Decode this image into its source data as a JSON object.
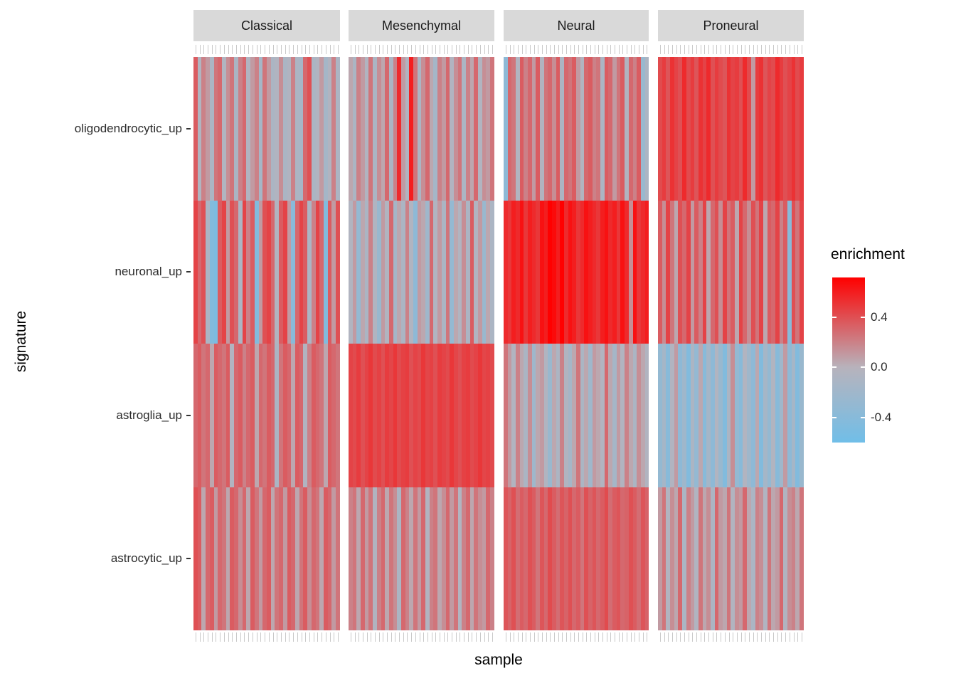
{
  "axes": {
    "x_label": "sample",
    "y_label": "signature"
  },
  "legend": {
    "title": "enrichment",
    "tick_labels": [
      "0.4",
      "0.0",
      "-0.4"
    ],
    "tick_values": [
      0.4,
      0.0,
      -0.4
    ]
  },
  "colors": {
    "strip_background": "#d9d9d9",
    "panel_background": "#ebebeb",
    "axis_text": "#2b2b2b",
    "sample_tick": "#c9c9c9"
  },
  "chart_data": {
    "type": "heatmap",
    "title": "",
    "xlabel": "sample",
    "ylabel": "signature",
    "facet_labels": [
      "Classical",
      "Mesenchymal",
      "Neural",
      "Proneural"
    ],
    "y_categories": [
      "oligodendrocytic_up",
      "neuronal_up",
      "astroglia_up",
      "astrocytic_up"
    ],
    "legend_title": "enrichment",
    "color_scale": {
      "low_color": "#70bee8",
      "mid_color": "#b7b3bc",
      "high_color": "#ff0000",
      "midpoint": 0,
      "domain": [
        -0.6,
        0.72
      ],
      "legend_ticks": [
        0.4,
        0.0,
        -0.4
      ]
    },
    "facet_values": [
      {
        "facet": "Classical",
        "values": [
          [
            0.35,
            -0.05,
            0.2,
            0.1,
            -0.1,
            0.25,
            0.3,
            -0.05,
            0.15,
            0.25,
            -0.1,
            0.2,
            0.3,
            -0.05,
            0.1,
            0.2,
            -0.15,
            0.25,
            0.1,
            -0.1,
            -0.05,
            0.15,
            -0.1,
            -0.05,
            0.2,
            -0.1,
            -0.15,
            0.3,
            0.4,
            -0.1,
            -0.05,
            0.1,
            -0.15,
            -0.05,
            0.2,
            -0.1
          ],
          [
            0.45,
            0.3,
            0.4,
            -0.1,
            -0.45,
            -0.5,
            0.35,
            0.45,
            0.1,
            0.4,
            0.3,
            -0.1,
            0.45,
            0.2,
            0.35,
            -0.45,
            0.1,
            0.4,
            0.45,
            0.3,
            -0.05,
            0.35,
            0.45,
            0.1,
            -0.4,
            0.3,
            0.45,
            0.35,
            -0.1,
            0.2,
            0.45,
            0.3,
            -0.45,
            0.35,
            0.1,
            0.4
          ],
          [
            0.3,
            0.35,
            0.25,
            0.3,
            0.05,
            0.35,
            0.3,
            0.25,
            0.35,
            -0.05,
            0.3,
            0.35,
            0.2,
            0.3,
            0.35,
            0.05,
            0.3,
            0.25,
            0.35,
            0.3,
            -0.1,
            0.25,
            0.35,
            0.3,
            0.05,
            0.35,
            0.3,
            -0.05,
            0.2,
            0.35,
            0.3,
            0.25,
            0.05,
            0.35,
            0.3,
            0.25
          ],
          [
            0.4,
            0.35,
            0.05,
            0.3,
            0.35,
            0.1,
            0.3,
            0.25,
            0.05,
            0.35,
            0.3,
            0.15,
            0.3,
            0.05,
            0.35,
            0.25,
            0.1,
            0.3,
            0.35,
            0.05,
            0.25,
            0.3,
            0.1,
            0.35,
            0.3,
            0.05,
            0.25,
            0.35,
            0.15,
            0.3,
            0.25,
            0.05,
            0.35,
            0.3,
            0.1,
            0.25
          ]
        ]
      },
      {
        "facet": "Mesenchymal",
        "values": [
          [
            0.05,
            -0.1,
            0.2,
            0.1,
            -0.05,
            0.25,
            -0.1,
            0.15,
            0.05,
            0.3,
            -0.1,
            0.2,
            0.55,
            0.1,
            -0.05,
            0.6,
            0.25,
            -0.1,
            0.15,
            0.3,
            0.05,
            -0.15,
            0.2,
            0.1,
            0.3,
            -0.05,
            0.15,
            0.25,
            -0.1,
            0.2,
            0.05,
            0.3,
            -0.05,
            0.15,
            0.1,
            0.25
          ],
          [
            -0.05,
            0.1,
            -0.3,
            0.05,
            -0.1,
            0.2,
            -0.05,
            -0.25,
            0.1,
            -0.05,
            0.3,
            -0.15,
            0.05,
            -0.1,
            0.2,
            -0.05,
            -0.35,
            0.1,
            0.05,
            -0.2,
            0.3,
            -0.05,
            0.1,
            -0.1,
            0.25,
            -0.3,
            0.05,
            -0.05,
            0.15,
            -0.1,
            0.35,
            -0.05,
            0.1,
            -0.25,
            0.05,
            -0.1
          ],
          [
            0.45,
            0.42,
            0.48,
            0.4,
            0.45,
            0.5,
            0.42,
            0.46,
            0.4,
            0.48,
            0.44,
            0.5,
            0.42,
            0.46,
            0.48,
            0.4,
            0.45,
            0.42,
            0.5,
            0.44,
            0.46,
            0.4,
            0.48,
            0.45,
            0.42,
            0.5,
            0.44,
            0.4,
            0.46,
            0.48,
            0.42,
            0.45,
            0.5,
            0.44,
            0.46,
            0.42
          ],
          [
            0.2,
            0.25,
            0.05,
            0.3,
            0.1,
            0.25,
            -0.05,
            0.2,
            0.3,
            0.05,
            0.25,
            0.15,
            -0.1,
            0.3,
            0.2,
            0.05,
            0.25,
            0.1,
            0.3,
            -0.05,
            0.2,
            0.25,
            0.05,
            0.15,
            0.3,
            0.1,
            0.25,
            -0.05,
            0.2,
            0.3,
            0.05,
            0.25,
            0.15,
            0.1,
            0.3,
            0.2
          ]
        ]
      },
      {
        "facet": "Neural",
        "values": [
          [
            -0.35,
            0.3,
            0.25,
            -0.05,
            0.35,
            0.2,
            0.3,
            0.1,
            0.35,
            -0.05,
            0.25,
            0.3,
            0.15,
            0.35,
            -0.1,
            0.3,
            0.25,
            0.35,
            0.1,
            -0.05,
            0.3,
            0.35,
            0.2,
            0.25,
            -0.1,
            0.35,
            0.3,
            0.1,
            0.25,
            0.35,
            -0.05,
            0.3,
            0.2,
            0.35,
            -0.25,
            -0.1
          ],
          [
            0.55,
            0.5,
            0.6,
            0.55,
            0.65,
            0.5,
            0.6,
            0.55,
            0.5,
            0.65,
            0.6,
            0.72,
            0.68,
            0.6,
            0.72,
            0.55,
            0.65,
            0.6,
            0.5,
            0.55,
            0.65,
            0.6,
            0.55,
            0.5,
            0.6,
            0.65,
            0.55,
            0.6,
            0.5,
            0.65,
            0.55,
            0.15,
            0.65,
            0.5,
            0.55,
            0.6
          ],
          [
            0.25,
            0.1,
            -0.05,
            0.2,
            0.05,
            -0.1,
            0.15,
            -0.2,
            0.05,
            0.1,
            -0.05,
            -0.25,
            0.05,
            -0.1,
            0.2,
            -0.05,
            -0.15,
            0.05,
            0.25,
            -0.1,
            0.05,
            -0.2,
            0.1,
            0.05,
            -0.05,
            0.3,
            0.05,
            -0.15,
            0.1,
            -0.05,
            0.2,
            0.05,
            -0.1,
            0.15,
            0.05,
            -0.05
          ],
          [
            0.38,
            0.32,
            0.4,
            0.28,
            0.35,
            0.3,
            0.4,
            0.35,
            0.25,
            0.38,
            0.3,
            0.42,
            0.35,
            0.28,
            0.38,
            0.32,
            0.4,
            0.3,
            0.35,
            0.25,
            0.4,
            0.32,
            0.38,
            0.3,
            0.35,
            0.42,
            0.28,
            0.35,
            0.38,
            0.3,
            0.32,
            0.4,
            0.35,
            0.28,
            0.38,
            0.32
          ]
        ]
      },
      {
        "facet": "Proneural",
        "values": [
          [
            0.42,
            0.48,
            0.38,
            0.52,
            0.45,
            0.4,
            0.55,
            0.42,
            0.48,
            0.38,
            0.52,
            0.45,
            0.55,
            0.4,
            0.48,
            0.42,
            0.38,
            0.52,
            0.45,
            0.48,
            0.4,
            0.55,
            0.42,
            0.1,
            0.48,
            0.52,
            0.38,
            0.45,
            0.42,
            0.55,
            0.48,
            0.4,
            0.45,
            0.52,
            0.42,
            0.48
          ],
          [
            0.35,
            0.15,
            0.45,
            0.25,
            0.05,
            0.4,
            0.3,
            0.45,
            0.1,
            0.35,
            0.2,
            0.45,
            0.05,
            0.3,
            0.4,
            0.15,
            0.45,
            0.25,
            0.35,
            0.05,
            0.45,
            0.3,
            0.15,
            0.4,
            0.25,
            0.45,
            0.05,
            0.35,
            0.3,
            0.45,
            0.2,
            0.35,
            -0.4,
            0.4,
            0.25,
            0.45
          ],
          [
            -0.3,
            -0.15,
            -0.4,
            -0.05,
            0.1,
            -0.35,
            -0.2,
            -0.45,
            -0.1,
            -0.3,
            0.05,
            -0.4,
            -0.15,
            -0.35,
            -0.05,
            -0.25,
            -0.45,
            -0.1,
            0.15,
            -0.3,
            -0.4,
            -0.05,
            -0.2,
            -0.35,
            0.05,
            -0.45,
            -0.15,
            -0.3,
            -0.05,
            -0.4,
            -0.2,
            0.1,
            -0.35,
            -0.15,
            -0.45,
            -0.25
          ],
          [
            0.1,
            0.25,
            -0.05,
            0.15,
            0.05,
            0.3,
            -0.1,
            0.2,
            0.1,
            -0.05,
            0.25,
            0.05,
            0.15,
            -0.1,
            0.3,
            0.1,
            0.05,
            0.25,
            -0.05,
            0.15,
            0.1,
            0.3,
            0.05,
            -0.1,
            0.2,
            0.15,
            -0.05,
            0.25,
            0.05,
            0.1,
            0.3,
            -0.05,
            0.15,
            0.2,
            0.05,
            0.25
          ]
        ]
      }
    ]
  }
}
